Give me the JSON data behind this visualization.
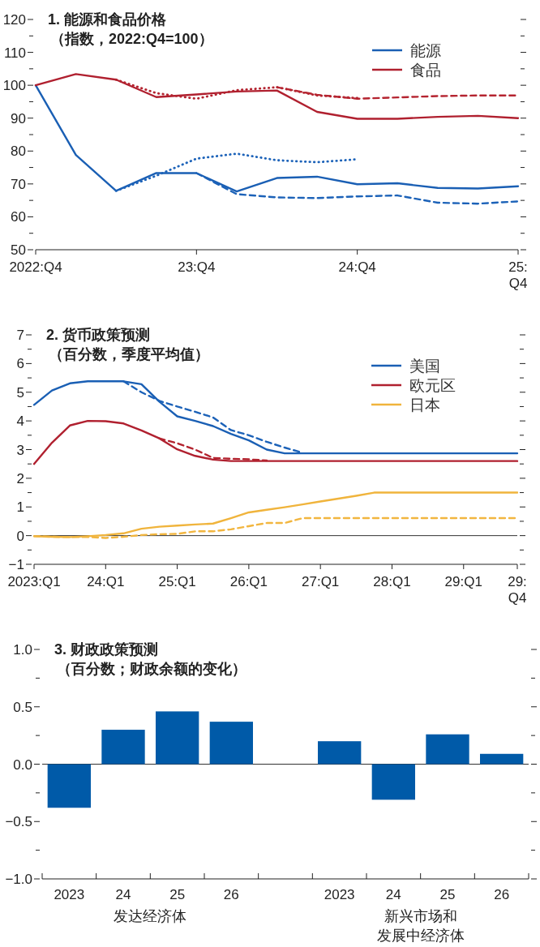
{
  "chart_data": [
    {
      "type": "line",
      "title": "1. 能源和食品价格",
      "subtitle": "（指数，2022:Q4=100）",
      "legend": "top right",
      "categories": [
        "2022:Q4",
        null,
        null,
        null,
        "23:Q4",
        null,
        null,
        null,
        "24:Q4",
        null,
        null,
        null,
        "25:Q4"
      ],
      "ylim": [
        50,
        120
      ],
      "yticks": [
        50,
        {
          "value": 55,
          "label": null
        },
        60,
        {
          "value": 65,
          "label": null
        },
        70,
        {
          "value": 75,
          "label": null
        },
        80,
        {
          "value": 85,
          "label": null
        },
        90,
        {
          "value": 95,
          "label": null
        },
        100,
        {
          "value": 105,
          "label": null
        },
        110,
        {
          "value": 115,
          "label": null
        },
        120
      ],
      "series": [
        {
          "name": "能源",
          "color": "#1a5fb4",
          "line_style": "solid",
          "values": [
            100,
            78.8,
            67.9,
            73.3,
            73.3,
            67.7,
            71.8,
            72.2,
            69.9,
            70.2,
            68.8,
            68.6,
            69.3
          ]
        },
        {
          "name": "食品",
          "color": "#b0202f",
          "line_style": "solid",
          "values": [
            100,
            103.4,
            101.7,
            96.4,
            97.2,
            98.1,
            98.4,
            91.9,
            89.8,
            89.8,
            90.4,
            90.7,
            90.0
          ]
        },
        {
          "color": "#1c62b8",
          "line_style": "dashed",
          "values": [
            null,
            null,
            null,
            null,
            73.3,
            66.9,
            65.9,
            65.7,
            66.2,
            66.5,
            64.3,
            64.0,
            64.7
          ]
        },
        {
          "color": "#1d63b9",
          "line_style": "dotted",
          "values": [
            null,
            null,
            67.9,
            72.5,
            77.7,
            79.2,
            77.2,
            76.6,
            77.5,
            null,
            null,
            null,
            null
          ]
        },
        {
          "color": "#b3232f",
          "line_style": "dotted",
          "values": [
            null,
            null,
            101.7,
            97.6,
            95.9,
            98.5,
            99.4,
            96.9,
            96.1,
            null,
            null,
            null,
            null
          ]
        },
        {
          "color": "#b52430",
          "line_style": "dashed",
          "values": [
            null,
            null,
            null,
            null,
            null,
            null,
            99.4,
            97.1,
            95.9,
            96.3,
            96.7,
            96.9,
            96.9
          ]
        }
      ]
    },
    {
      "type": "line",
      "title": "2. 货币政策预测",
      "subtitle": "（百分数，季度平均值）",
      "legend": "top right",
      "categories": [
        "2023:Q1",
        null,
        null,
        null,
        "24:Q1",
        null,
        null,
        null,
        "25:Q1",
        null,
        null,
        null,
        "26:Q1",
        null,
        null,
        null,
        "27:Q1",
        null,
        null,
        null,
        "28:Q1",
        null,
        null,
        null,
        "29:Q1",
        null,
        null,
        "29:Q4"
      ],
      "ylim": [
        -1,
        7
      ],
      "yticks": [
        {
          "value": -1,
          "label": "−1"
        },
        {
          "value": -0.5,
          "label": null
        },
        0,
        {
          "value": 0.5,
          "label": null
        },
        1,
        {
          "value": 1.5,
          "label": null
        },
        2,
        {
          "value": 2.5,
          "label": null
        },
        3,
        {
          "value": 3.5,
          "label": null
        },
        4,
        {
          "value": 4.5,
          "label": null
        },
        5,
        {
          "value": 5.5,
          "label": null
        },
        6,
        {
          "value": 6.5,
          "label": null
        },
        7
      ],
      "ref_lines": [
        {
          "axis": "y",
          "value": 0,
          "color": "#333333"
        }
      ],
      "series": [
        {
          "name": "美国",
          "color": "#1a5fb4",
          "line_style": "solid",
          "values": [
            4.56,
            5.06,
            5.31,
            5.38,
            5.38,
            5.38,
            5.28,
            4.67,
            4.16,
            4.0,
            3.82,
            3.55,
            3.32,
            3.0,
            2.87,
            2.87,
            2.87,
            2.87,
            2.87,
            2.87,
            2.87,
            2.87,
            2.87,
            2.87,
            2.87,
            2.87,
            2.87,
            2.87
          ]
        },
        {
          "name": "欧元区",
          "color": "#b0202f",
          "line_style": "solid",
          "values": [
            2.5,
            3.24,
            3.84,
            4.0,
            3.99,
            3.91,
            3.67,
            3.39,
            3.01,
            2.78,
            2.65,
            2.6,
            2.6,
            2.6,
            2.6,
            2.6,
            2.6,
            2.6,
            2.6,
            2.6,
            2.6,
            2.6,
            2.6,
            2.6,
            2.6,
            2.6,
            2.6,
            2.6
          ]
        },
        {
          "name": "日本",
          "color": "#f0b43c",
          "line_style": "solid",
          "values": [
            -0.02,
            -0.04,
            -0.05,
            -0.02,
            0.02,
            0.08,
            0.24,
            0.31,
            0.35,
            0.39,
            0.42,
            0.61,
            0.81,
            0.9,
            0.99,
            1.09,
            1.19,
            1.29,
            1.39,
            1.5,
            1.5,
            1.5,
            1.5,
            1.5,
            1.5,
            1.5,
            1.5,
            1.5
          ]
        },
        {
          "color": "#1c62b8",
          "line_style": "dashed",
          "values": [
            null,
            null,
            null,
            null,
            null,
            5.38,
            5.0,
            4.7,
            4.5,
            4.32,
            4.12,
            3.68,
            3.5,
            3.27,
            3.07,
            2.89,
            null,
            null,
            null,
            null,
            null,
            null,
            null,
            null,
            null,
            null,
            null,
            null
          ]
        },
        {
          "color": "#b3232f",
          "line_style": "dashed",
          "values": [
            null,
            null,
            null,
            null,
            null,
            null,
            null,
            3.39,
            3.22,
            3.0,
            2.71,
            2.68,
            2.66,
            2.62,
            null,
            null,
            null,
            null,
            null,
            null,
            null,
            null,
            null,
            null,
            null,
            null,
            null,
            null
          ]
        },
        {
          "color": "#f2b640",
          "line_style": "dashed",
          "values": [
            -0.02,
            -0.04,
            -0.05,
            -0.05,
            -0.08,
            -0.04,
            0.02,
            0.05,
            0.06,
            0.15,
            0.15,
            0.22,
            0.33,
            0.44,
            0.44,
            0.61,
            0.61,
            0.61,
            0.61,
            0.61,
            0.61,
            0.61,
            0.61,
            0.61,
            0.61,
            0.61,
            0.61,
            0.61
          ]
        }
      ]
    },
    {
      "type": "bar",
      "title": "3. 财政政策预测",
      "subtitle": "（百分数；财政余额的变化）",
      "color": "#005aa8",
      "categories": [
        "2023",
        "24",
        "25",
        "26",
        null,
        "2023",
        "24",
        "25",
        "26"
      ],
      "values": [
        -0.38,
        0.3,
        0.46,
        0.37,
        null,
        0.2,
        -0.31,
        0.26,
        0.09
      ],
      "ylim": [
        -1,
        1
      ],
      "yticks": [
        {
          "value": -1,
          "label": "−1.0"
        },
        {
          "value": -0.75,
          "label": null
        },
        {
          "value": -0.5,
          "label": "−0.5"
        },
        {
          "value": -0.25,
          "label": null
        },
        {
          "value": 0,
          "label": "0.0"
        },
        {
          "value": 0.25,
          "label": null
        },
        {
          "value": 0.5,
          "label": "0.5"
        },
        {
          "value": 0.75,
          "label": null
        },
        {
          "value": 1,
          "label": "1.0"
        }
      ],
      "ref_lines": [
        {
          "axis": "y",
          "value": 0,
          "color": "#333333"
        }
      ],
      "annotations": [
        "发达经济体",
        "新兴市场和发展中经济体"
      ]
    }
  ]
}
